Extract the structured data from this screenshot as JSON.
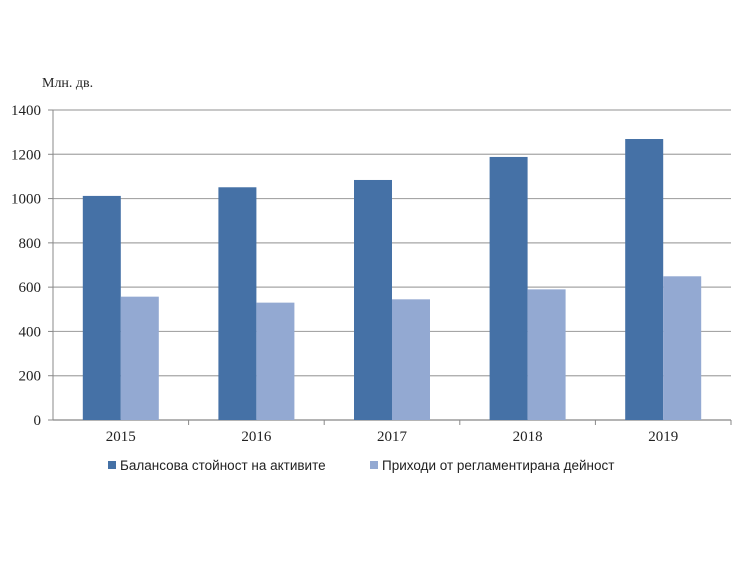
{
  "chart_data": {
    "type": "bar",
    "title": "",
    "ylabel": "Млн. дв.",
    "xlabel": "",
    "categories": [
      "2015",
      "2016",
      "2017",
      "2018",
      "2019"
    ],
    "ylim": [
      0,
      1400
    ],
    "yticks": [
      "0",
      "200",
      "400",
      "600",
      "800",
      "1000",
      "1200",
      "1400"
    ],
    "grid": true,
    "legend_position": "bottom",
    "series": [
      {
        "name": "Балансова стойност на активите",
        "color": "#4571a6",
        "values": [
          1012,
          1051,
          1084,
          1188,
          1269
        ]
      },
      {
        "name": "Приходи от регламентирана дейност",
        "color": "#93a9d2",
        "values": [
          557,
          530,
          545,
          590,
          649
        ]
      }
    ]
  }
}
